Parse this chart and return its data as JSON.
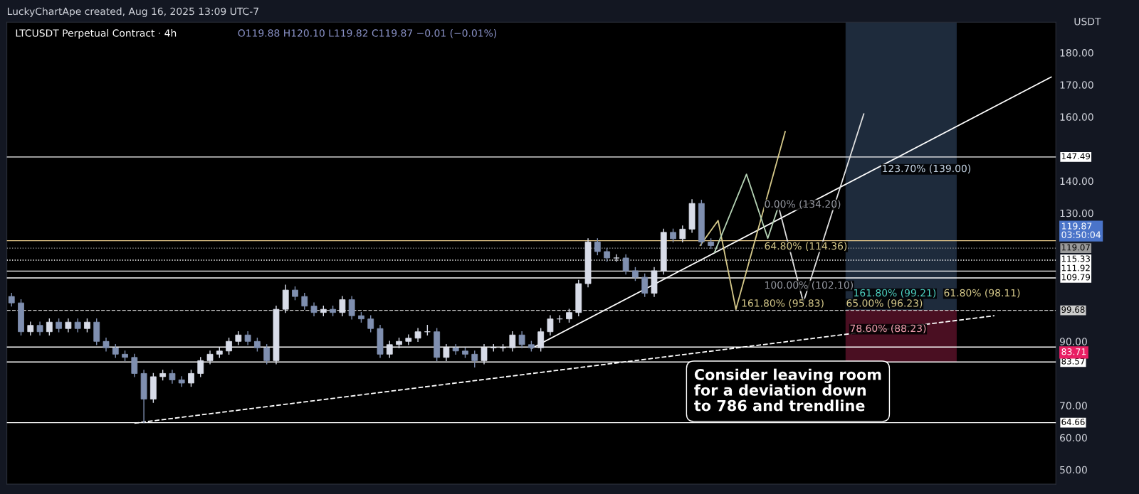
{
  "chart_data": {
    "type": "candlestick",
    "title": "LTCUSDT Perpetual Contract · 4h",
    "subtitle": "O119.88 H120.10 L119.82 C119.87 −0.01 (−0.01%)",
    "ylabel": "USDT",
    "colors": [
      "#7f8fb0",
      "#7f8fb0",
      "#d8dce8",
      "#7f8fb0",
      "#d8dce8",
      "#7f8fb0",
      "#d8dce8",
      "#7f8fb0",
      "#d8dce8",
      "#7f8fb0",
      "#7f8fb0",
      "#7f8fb0",
      "#7f8fb0",
      "#7f8fb0",
      "#7f8fb0",
      "#d8dce8",
      "#d8dce8",
      "#7f8fb0",
      "#7f8fb0",
      "#d8dce8",
      "#d8dce8",
      "#d8dce8",
      "#d8dce8",
      "#d8dce8",
      "#d8dce8",
      "#7f8fb0",
      "#7f8fb0",
      "#7f8fb0",
      "#d8dce8",
      "#d8dce8",
      "#7f8fb0",
      "#7f8fb0",
      "#7f8fb0",
      "#d8dce8",
      "#7f8fb0",
      "#d8dce8",
      "#7f8fb0",
      "#7f8fb0",
      "#7f8fb0",
      "#7f8fb0",
      "#d8dce8",
      "#d8dce8",
      "#d8dce8",
      "#d8dce8",
      "#d8dce8",
      "#7f8fb0",
      "#d8dce8",
      "#7f8fb0",
      "#7f8fb0",
      "#7f8fb0",
      "#d8dce8",
      "#d8dce8",
      "#d8dce8",
      "#d8dce8",
      "#7f8fb0",
      "#7f8fb0",
      "#d8dce8",
      "#d8dce8",
      "#d8dce8",
      "#d8dce8",
      "#d8dce8",
      "#d8dce8",
      "#7f8fb0",
      "#7f8fb0",
      "#d8dce8",
      "#7f8fb0",
      "#7f8fb0",
      "#7f8fb0",
      "#d8dce8",
      "#d8dce8",
      "#7f8fb0",
      "#d8dce8",
      "#d8dce8",
      "#7f8fb0",
      "#7f8fb0",
      null,
      null,
      null,
      null,
      null,
      null,
      null,
      null,
      null,
      null,
      null,
      null,
      null,
      null,
      null,
      null,
      null,
      null,
      null,
      null,
      null,
      null,
      null,
      null,
      null,
      null,
      null,
      null,
      null,
      null,
      null,
      null,
      null,
      null,
      null,
      null
    ],
    "categories": [
      null,
      null,
      null,
      null,
      null,
      null,
      null,
      null,
      null,
      null,
      null,
      null,
      null,
      null,
      null,
      null,
      null,
      null,
      null,
      null,
      null,
      null,
      null,
      null,
      null,
      null,
      null,
      null,
      null,
      null,
      null,
      null,
      null,
      null,
      null,
      null,
      null,
      null,
      null,
      null,
      null,
      null,
      null,
      null,
      null,
      null,
      null,
      null,
      null,
      null,
      null,
      null,
      null,
      null,
      null,
      null,
      null,
      null,
      null,
      null,
      null,
      null,
      null,
      null,
      null,
      null,
      null,
      null,
      null,
      null,
      null,
      null,
      null,
      null,
      null,
      null,
      null,
      null,
      null,
      null,
      null,
      null,
      null,
      null,
      null,
      null,
      null,
      null,
      null,
      null,
      null,
      null,
      null,
      null,
      null,
      null,
      null,
      null,
      null,
      null,
      null,
      null,
      null,
      null,
      null,
      null,
      null,
      null,
      null,
      null,
      null
    ],
    "ohlc": [
      [
        104,
        105,
        101,
        102
      ],
      [
        102,
        103,
        92,
        93
      ],
      [
        93,
        96,
        92,
        95
      ],
      [
        95,
        96,
        92,
        93
      ],
      [
        93,
        97,
        92,
        96
      ],
      [
        96,
        97,
        93,
        94
      ],
      [
        94,
        97,
        93,
        96
      ],
      [
        96,
        97,
        93,
        94
      ],
      [
        94,
        97,
        93,
        96
      ],
      [
        96,
        97,
        89,
        90
      ],
      [
        90,
        91,
        87,
        88
      ],
      [
        88,
        89,
        85,
        86
      ],
      [
        86,
        87,
        84,
        85
      ],
      [
        85,
        86,
        79,
        80
      ],
      [
        80,
        81,
        64.7,
        72
      ],
      [
        72,
        80,
        71,
        79
      ],
      [
        79,
        81,
        78,
        80
      ],
      [
        80,
        81,
        77,
        78
      ],
      [
        78,
        79,
        76,
        77
      ],
      [
        77,
        81,
        76,
        80
      ],
      [
        80,
        85,
        79,
        84
      ],
      [
        84,
        87,
        83,
        86
      ],
      [
        86,
        88,
        85,
        87
      ],
      [
        87,
        91,
        86,
        90
      ],
      [
        90,
        93,
        89,
        92
      ],
      [
        92,
        93,
        89,
        90
      ],
      [
        90,
        91,
        87,
        88
      ],
      [
        88,
        89,
        83,
        84
      ],
      [
        84,
        101,
        83,
        100
      ],
      [
        100,
        107.5,
        99,
        106
      ],
      [
        106,
        107,
        103,
        104
      ],
      [
        104,
        105,
        100,
        101
      ],
      [
        101,
        102,
        98,
        99
      ],
      [
        99,
        101,
        98,
        100
      ],
      [
        100,
        101,
        98,
        99
      ],
      [
        99,
        104,
        98,
        103
      ],
      [
        103,
        104,
        97,
        98
      ],
      [
        98,
        99,
        96,
        97
      ],
      [
        97,
        98,
        93,
        94
      ],
      [
        94,
        95,
        85,
        86
      ],
      [
        86,
        90,
        85,
        89
      ],
      [
        89,
        91,
        88,
        90
      ],
      [
        90,
        92,
        89,
        91
      ],
      [
        91,
        94,
        90,
        93
      ],
      [
        93,
        95,
        92,
        93
      ],
      [
        93,
        94,
        84,
        85
      ],
      [
        85,
        89,
        84,
        88
      ],
      [
        88,
        89,
        86,
        87
      ],
      [
        87,
        88,
        85,
        86
      ],
      [
        86,
        87,
        82,
        84
      ],
      [
        84,
        89,
        83,
        88
      ],
      [
        88,
        89,
        87,
        88
      ],
      [
        88,
        89,
        87,
        88
      ],
      [
        88,
        93,
        87,
        92
      ],
      [
        92,
        93,
        88,
        89
      ],
      [
        89,
        90,
        87,
        88
      ],
      [
        88,
        94,
        87,
        93
      ],
      [
        93,
        98,
        92,
        97
      ],
      [
        97,
        98,
        96,
        97
      ],
      [
        97,
        100,
        96,
        99
      ],
      [
        99,
        109,
        98,
        108
      ],
      [
        108,
        122,
        107,
        121
      ],
      [
        121,
        122,
        117,
        118
      ],
      [
        118,
        119,
        115,
        116
      ],
      [
        116,
        117,
        115,
        116
      ],
      [
        116,
        117,
        111,
        112
      ],
      [
        112,
        113,
        109,
        110
      ],
      [
        110,
        111,
        104,
        105
      ],
      [
        105,
        113,
        104,
        112
      ],
      [
        112,
        125,
        111,
        124
      ],
      [
        124,
        125,
        121,
        122
      ],
      [
        122,
        126,
        121,
        125
      ],
      [
        125,
        134.2,
        124,
        133
      ],
      [
        133,
        134,
        120,
        121
      ],
      [
        121,
        122,
        119,
        119.87
      ],
      null,
      null,
      null,
      null,
      null,
      null,
      null,
      null,
      null,
      null,
      null,
      null,
      null,
      null,
      null,
      null,
      null,
      null,
      null,
      null,
      null,
      null,
      null,
      null,
      null,
      null,
      null,
      null,
      null,
      null,
      null,
      null,
      null,
      null,
      null,
      null
    ],
    "series": [
      {
        "type": "line",
        "color": "#ffffff",
        "values": [
          null,
          null,
          null,
          null,
          null,
          null,
          null,
          null,
          null,
          null,
          null,
          null,
          null,
          null,
          null,
          null,
          null,
          null,
          null,
          null,
          null,
          null,
          null,
          null,
          null,
          null,
          null,
          null,
          null,
          null,
          null,
          null,
          null,
          null,
          null,
          null,
          null,
          null,
          null,
          null,
          null,
          null,
          null,
          null,
          null,
          null,
          null,
          null,
          null,
          null,
          null,
          null,
          null,
          null,
          null,
          87.8,
          null,
          null,
          null,
          null,
          null,
          null,
          null,
          null,
          null,
          null,
          null,
          null,
          null,
          null,
          null,
          null,
          null,
          null,
          null,
          null,
          null,
          null,
          null,
          null,
          null,
          null,
          null,
          null,
          null,
          null,
          null,
          null,
          null,
          null,
          null,
          null,
          null,
          null,
          null,
          null,
          null,
          null,
          null,
          null,
          null,
          null,
          null,
          null,
          null,
          null,
          null,
          null,
          null,
          null,
          172.4
        ]
      },
      {
        "type": "line",
        "color": "#ffffff",
        "line_style": "dashed",
        "values": [
          null,
          null,
          null,
          null,
          null,
          null,
          null,
          null,
          null,
          null,
          null,
          null,
          null,
          64.5,
          null,
          null,
          null,
          null,
          null,
          null,
          null,
          null,
          null,
          null,
          null,
          null,
          null,
          null,
          null,
          null,
          null,
          null,
          null,
          null,
          null,
          null,
          null,
          null,
          null,
          null,
          null,
          null,
          null,
          null,
          null,
          null,
          null,
          null,
          null,
          null,
          null,
          null,
          null,
          null,
          null,
          null,
          null,
          null,
          null,
          null,
          null,
          null,
          null,
          null,
          null,
          null,
          null,
          null,
          null,
          null,
          null,
          null,
          null,
          null,
          null,
          null,
          null,
          null,
          null,
          null,
          null,
          null,
          null,
          null,
          null,
          null,
          null,
          null,
          null,
          null,
          null,
          null,
          null,
          null,
          null,
          null,
          null,
          null,
          null,
          null,
          null,
          null,
          null,
          null,
          98.0,
          null,
          null,
          null,
          null,
          null,
          null
        ]
      }
    ],
    "ylim": [
      45.5,
      189.5
    ],
    "yticks": [
      {
        "value": 50,
        "label": "50.00"
      },
      {
        "value": 60,
        "label": "60.00"
      },
      {
        "value": 70,
        "label": "70.00"
      },
      {
        "value": 90,
        "label": "90.00"
      },
      {
        "value": 130,
        "label": "130.00"
      },
      {
        "value": 140,
        "label": "140.00"
      },
      {
        "value": 160,
        "label": "160.00"
      },
      {
        "value": 170,
        "label": "170.00"
      },
      {
        "value": 180,
        "label": "180.00"
      }
    ],
    "tick_labels": "y",
    "grid": false,
    "ref_lines": [
      {
        "axis": "y",
        "value": 147.49,
        "label": "147.49",
        "color": "#ffffff"
      },
      {
        "axis": "y",
        "value": 121.4,
        "label": null,
        "color": "#e8c98a"
      },
      {
        "axis": "y",
        "value": 119.07,
        "label": "119.07",
        "color": "#9a9a9a",
        "line_style": "dotted"
      },
      {
        "axis": "y",
        "value": 115.33,
        "label": "115.33",
        "color": "#ffffff",
        "line_style": "dotted"
      },
      {
        "axis": "y",
        "value": 111.92,
        "label": "111.92",
        "color": "#ffffff"
      },
      {
        "axis": "y",
        "value": 109.79,
        "label": "109.79",
        "color": "#ffffff"
      },
      {
        "axis": "y",
        "value": 99.68,
        "label": "99.68",
        "color": "#cccccc",
        "line_style": "dashed"
      },
      {
        "axis": "y",
        "value": 88.23,
        "label": null,
        "color": "#ffffff"
      },
      {
        "axis": "y",
        "value": 83.57,
        "label": "83.57",
        "color": "#ffffff"
      },
      {
        "axis": "y",
        "value": 64.66,
        "label": "64.66",
        "color": "#ffffff"
      }
    ],
    "bands": [
      {
        "axis": "y",
        "from": 99.68,
        "to": 189.5,
        "color": "#1e2b3c"
      },
      {
        "axis": "y",
        "from": 83.71,
        "to": 99.68,
        "color": "#4a0f22"
      }
    ],
    "annotations": [
      "LuckyChartApe created, Aug 16, 2025 13:09 UTC-7",
      "0.00% (134.20)",
      "123.70% (139.00)",
      "64.80% (114.36)",
      "100.00% (102.10)",
      "161.80% (99.21)",
      "61.80% (98.11)",
      "161.80% (95.83)",
      "65.00% (96.23)",
      "78.60% (88.23)",
      "Consider leaving room\nfor a deviation down\nto 786 and trendline",
      "119.87\n03:50:04",
      "83.71"
    ]
  }
}
